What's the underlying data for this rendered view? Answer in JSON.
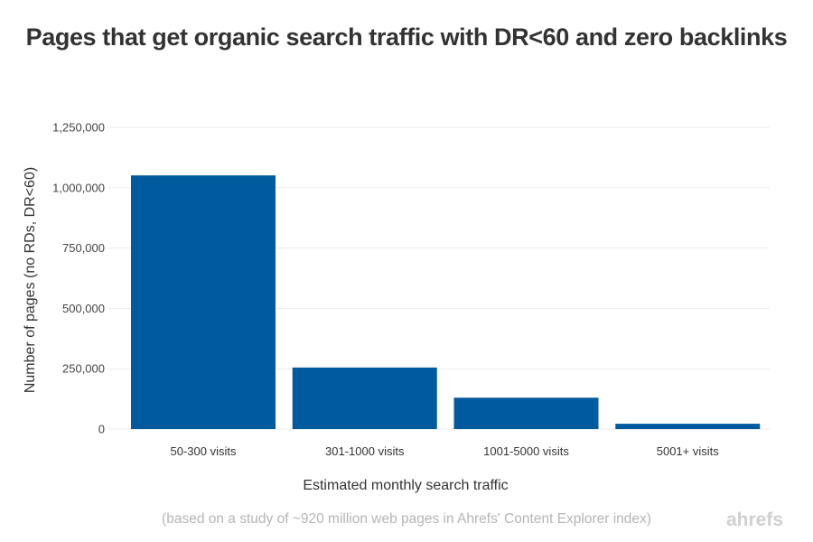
{
  "chart_data": {
    "type": "bar",
    "title": "Pages that get organic search traffic with DR<60 and zero backlinks",
    "xlabel": "Estimated monthly search traffic",
    "ylabel": "Number of pages (no RDs, DR<60)",
    "categories": [
      "50-300 visits",
      "301-1000 visits",
      "1001-5000 visits",
      "5001+ visits"
    ],
    "values": [
      1051000,
      255000,
      130000,
      22000
    ],
    "ylim": [
      0,
      1250000
    ],
    "yticks": [
      0,
      250000,
      500000,
      750000,
      1000000,
      1250000
    ],
    "ytick_labels": [
      "0",
      "250,000",
      "500,000",
      "750,000",
      "1,000,000",
      "1,250,000"
    ],
    "grid": true,
    "legend": "none",
    "bar_color": "#005a9e",
    "grid_color": "#ebebeb"
  },
  "footnote": "(based on a study of ~920 million web pages in Ahrefs' Content Explorer index)",
  "logo": "ahrefs"
}
